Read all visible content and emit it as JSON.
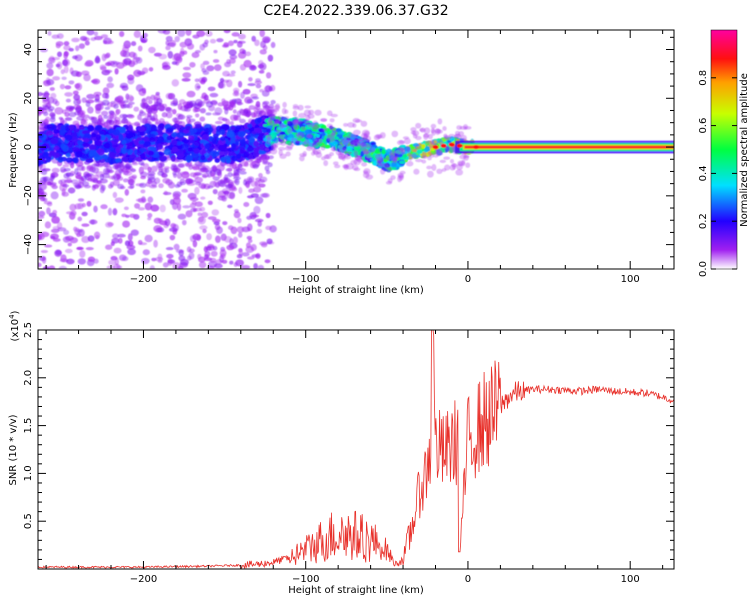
{
  "page_title": "C2E4.2022.339.06.37.G32",
  "colors": {
    "snr_line": "#e8302a",
    "axis": "#000000"
  },
  "chart_data": [
    {
      "type": "heatmap",
      "title": "C2E4.2022.339.06.37.G32",
      "xlabel": "Height of straight line (km)",
      "ylabel": "Frequency (Hz)",
      "xlim": [
        -265,
        127
      ],
      "ylim": [
        -50,
        48
      ],
      "xticks": [
        -200,
        -100,
        0,
        100
      ],
      "yticks": [
        -40,
        -20,
        0,
        20,
        40
      ],
      "colorbar": {
        "label": "Normalized spectral amplitude",
        "range": [
          0,
          1
        ],
        "ticks": [
          "0.0",
          "0.2",
          "0.4",
          "0.6",
          "0.8"
        ]
      },
      "ridge": [
        {
          "x": -260,
          "y": 2
        },
        {
          "x": -220,
          "y": 1
        },
        {
          "x": -180,
          "y": 2
        },
        {
          "x": -140,
          "y": 1
        },
        {
          "x": -120,
          "y": 7
        },
        {
          "x": -100,
          "y": 6
        },
        {
          "x": -80,
          "y": 3
        },
        {
          "x": -60,
          "y": -2
        },
        {
          "x": -48,
          "y": -6
        },
        {
          "x": -35,
          "y": -2
        },
        {
          "x": -20,
          "y": 0
        },
        {
          "x": -10,
          "y": 1
        },
        {
          "x": 0,
          "y": 0
        },
        {
          "x": 127,
          "y": 0
        }
      ]
    },
    {
      "type": "line",
      "xlabel": "Height of straight line (km)",
      "ylabel": "SNR (10 * v/v)",
      "y_multiplier": "(x10",
      "y_multiplier_exp": "4",
      "y_multiplier_close": ")",
      "xlim": [
        -265,
        127
      ],
      "ylim": [
        0,
        2.5
      ],
      "xticks": [
        -200,
        -100,
        0,
        100
      ],
      "yticks": [
        "0.5",
        "1.0",
        "1.5",
        "2.0",
        "2.5"
      ],
      "series": [
        {
          "name": "SNR",
          "x": [
            -265,
            -240,
            -200,
            -160,
            -140,
            -130,
            -120,
            -110,
            -100,
            -90,
            -80,
            -70,
            -60,
            -50,
            -45,
            -40,
            -35,
            -30,
            -25,
            -23,
            -22,
            -20,
            -15,
            -10,
            -6,
            -5,
            0,
            5,
            10,
            15,
            20,
            25,
            30,
            40,
            50,
            60,
            70,
            80,
            90,
            100,
            110,
            120,
            127
          ],
          "y": [
            0.02,
            0.02,
            0.02,
            0.03,
            0.04,
            0.05,
            0.07,
            0.12,
            0.2,
            0.3,
            0.38,
            0.35,
            0.3,
            0.2,
            0.05,
            0.1,
            0.4,
            0.8,
            1.05,
            1.25,
            2.5,
            1.3,
            1.2,
            1.3,
            1.35,
            0.2,
            1.35,
            1.45,
            1.55,
            1.6,
            1.7,
            1.8,
            1.85,
            1.88,
            1.88,
            1.87,
            1.86,
            1.88,
            1.86,
            1.85,
            1.84,
            1.8,
            1.76
          ]
        }
      ]
    }
  ]
}
